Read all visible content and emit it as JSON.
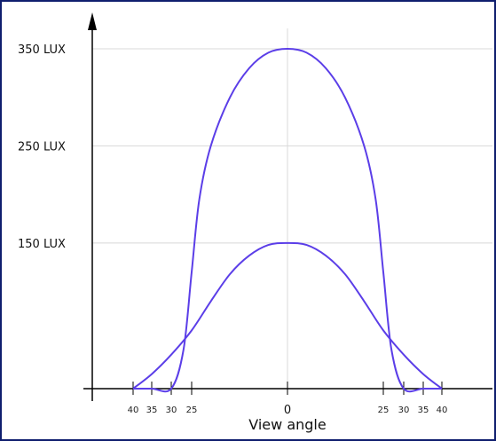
{
  "chart_data": {
    "type": "line",
    "title": "",
    "xlabel": "View angle",
    "ylabel": "",
    "y_tick_labels": [
      "350 LUX",
      "250 LUX",
      "150 LUX"
    ],
    "y_tick_values": [
      350,
      250,
      150
    ],
    "x_tick_labels_left": [
      "40",
      "35",
      "30",
      "25"
    ],
    "x_tick_labels_right": [
      "25",
      "30",
      "35",
      "40"
    ],
    "x_center_label": "0",
    "ylim": [
      0,
      380
    ],
    "grid": true,
    "line_color": "#5b3ee8",
    "series": [
      {
        "x": [
          -40,
          -35,
          -30,
          -27,
          -25,
          -23,
          -20,
          -15,
          -10,
          -5,
          0,
          5,
          10,
          15,
          20,
          23,
          25,
          27,
          30,
          35,
          40
        ],
        "y": [
          0,
          0,
          0,
          40,
          120,
          195,
          250,
          300,
          330,
          346,
          350,
          346,
          330,
          300,
          250,
          195,
          120,
          40,
          0,
          0,
          0
        ]
      },
      {
        "x": [
          -40,
          -35,
          -30,
          -25,
          -20,
          -15,
          -10,
          -5,
          0,
          5,
          10,
          15,
          20,
          25,
          30,
          35,
          40
        ],
        "y": [
          0,
          15,
          35,
          60,
          90,
          118,
          137,
          148,
          150,
          148,
          137,
          118,
          90,
          60,
          35,
          15,
          0
        ]
      }
    ]
  }
}
